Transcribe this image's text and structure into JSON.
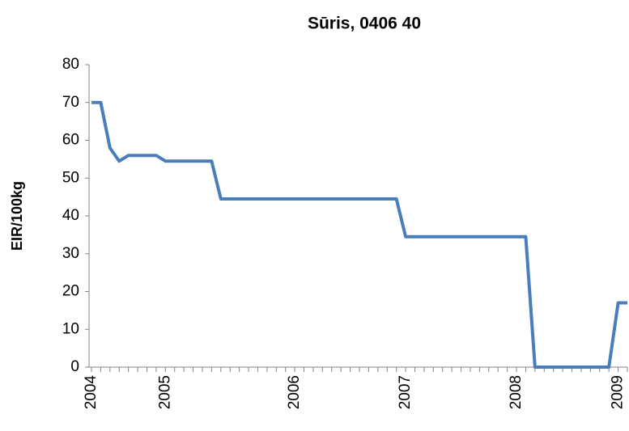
{
  "chart_data": {
    "type": "line",
    "title": "Sūris, 0406 40",
    "y_label": "EIR/100kg",
    "categories": [
      "2004",
      null,
      null,
      null,
      null,
      null,
      null,
      null,
      "2005",
      null,
      null,
      null,
      null,
      null,
      null,
      null,
      null,
      null,
      null,
      null,
      null,
      null,
      "2006",
      null,
      null,
      null,
      null,
      null,
      null,
      null,
      null,
      null,
      null,
      null,
      "2007",
      null,
      null,
      null,
      null,
      null,
      null,
      null,
      null,
      null,
      null,
      null,
      "2008",
      null,
      null,
      null,
      null,
      null,
      null,
      null,
      null,
      null,
      null,
      "2009",
      null
    ],
    "values": [
      70,
      70,
      58,
      54.5,
      56,
      56,
      56,
      56,
      54.5,
      54.5,
      54.5,
      54.5,
      54.5,
      54.5,
      44.5,
      44.5,
      44.5,
      44.5,
      44.5,
      44.5,
      44.5,
      44.5,
      44.5,
      44.5,
      44.5,
      44.5,
      44.5,
      44.5,
      44.5,
      44.5,
      44.5,
      44.5,
      44.5,
      44.5,
      34.5,
      34.5,
      34.5,
      34.5,
      34.5,
      34.5,
      34.5,
      34.5,
      34.5,
      34.5,
      34.5,
      34.5,
      34.5,
      34.5,
      0,
      0,
      0,
      0,
      0,
      0,
      0,
      0,
      0,
      17,
      17
    ],
    "color": "#4a7ebb",
    "ylim": [
      0,
      80
    ],
    "yticks": [
      0,
      10,
      20,
      30,
      40,
      50,
      60,
      70,
      80
    ],
    "grid": false
  }
}
